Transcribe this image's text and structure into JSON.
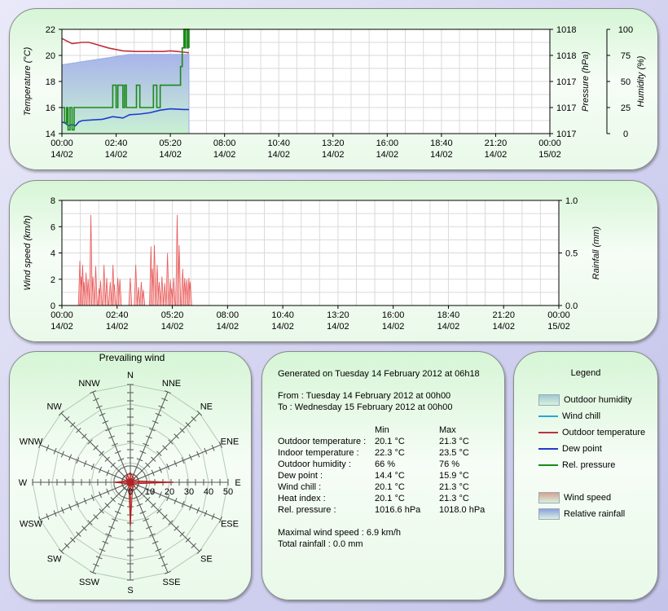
{
  "chart_data": [
    {
      "type": "line",
      "x_ticks": [
        [
          "00:00",
          "14/02"
        ],
        [
          "02:40",
          "14/02"
        ],
        [
          "05:20",
          "14/02"
        ],
        [
          "08:00",
          "14/02"
        ],
        [
          "10:40",
          "14/02"
        ],
        [
          "13:20",
          "14/02"
        ],
        [
          "16:00",
          "14/02"
        ],
        [
          "18:40",
          "14/02"
        ],
        [
          "21:20",
          "14/02"
        ],
        [
          "00:00",
          "15/02"
        ]
      ],
      "x_range_minutes": [
        0,
        1440
      ],
      "y_left": {
        "label": "Temperature (°C)",
        "range": [
          14,
          22
        ],
        "ticks": [
          "22",
          "20",
          "18",
          "16",
          "14"
        ]
      },
      "y_right1": {
        "label": "Pressure (hPa)",
        "range": [
          1016.6,
          1018.0
        ],
        "ticks": [
          "1018",
          "1018",
          "1017",
          "1017",
          "1017"
        ]
      },
      "y_right2": {
        "label": "Humidity (%)",
        "range": [
          0,
          100
        ],
        "ticks": [
          "100",
          "75",
          "50",
          "25",
          "0"
        ]
      },
      "series": [
        {
          "name": "Outdoor humidity",
          "color": "#9aaee6",
          "kind": "area",
          "axis": "humidity",
          "points": [
            [
              0,
              66
            ],
            [
              20,
              67
            ],
            [
              40,
              68
            ],
            [
              60,
              69
            ],
            [
              80,
              70
            ],
            [
              100,
              71
            ],
            [
              120,
              72
            ],
            [
              140,
              73
            ],
            [
              160,
              74
            ],
            [
              180,
              75
            ],
            [
              200,
              76
            ],
            [
              225,
              76
            ],
            [
              375,
              76
            ]
          ]
        },
        {
          "name": "Outdoor temperature",
          "color": "#c03040",
          "kind": "line",
          "axis": "temperature",
          "points": [
            [
              0,
              21.3
            ],
            [
              15,
              21.1
            ],
            [
              30,
              20.9
            ],
            [
              60,
              21.0
            ],
            [
              80,
              21.0
            ],
            [
              100,
              20.85
            ],
            [
              120,
              20.7
            ],
            [
              140,
              20.55
            ],
            [
              160,
              20.45
            ],
            [
              180,
              20.35
            ],
            [
              220,
              20.3
            ],
            [
              260,
              20.3
            ],
            [
              300,
              20.3
            ],
            [
              320,
              20.35
            ],
            [
              340,
              20.3
            ],
            [
              360,
              20.25
            ],
            [
              375,
              20.2
            ]
          ]
        },
        {
          "name": "Dew point",
          "color": "#1e3ccc",
          "kind": "line",
          "axis": "temperature",
          "points": [
            [
              0,
              14.9
            ],
            [
              10,
              14.8
            ],
            [
              20,
              14.6
            ],
            [
              30,
              14.7
            ],
            [
              40,
              14.6
            ],
            [
              50,
              14.9
            ],
            [
              60,
              15.0
            ],
            [
              90,
              15.05
            ],
            [
              120,
              15.1
            ],
            [
              150,
              15.3
            ],
            [
              180,
              15.2
            ],
            [
              200,
              15.45
            ],
            [
              230,
              15.5
            ],
            [
              260,
              15.6
            ],
            [
              290,
              15.8
            ],
            [
              320,
              15.9
            ],
            [
              360,
              15.85
            ],
            [
              375,
              15.85
            ]
          ]
        },
        {
          "name": "Rel. pressure",
          "color": "#1b8a1b",
          "kind": "step",
          "axis": "pressure",
          "points": [
            [
              0,
              1016.95
            ],
            [
              8,
              1016.75
            ],
            [
              14,
              1016.95
            ],
            [
              18,
              1016.65
            ],
            [
              24,
              1016.95
            ],
            [
              30,
              1016.65
            ],
            [
              36,
              1016.95
            ],
            [
              60,
              1016.95
            ],
            [
              100,
              1016.95
            ],
            [
              140,
              1016.95
            ],
            [
              150,
              1017.25
            ],
            [
              160,
              1016.95
            ],
            [
              165,
              1017.25
            ],
            [
              180,
              1016.95
            ],
            [
              185,
              1017.25
            ],
            [
              190,
              1016.95
            ],
            [
              200,
              1016.95
            ],
            [
              220,
              1017.25
            ],
            [
              230,
              1016.95
            ],
            [
              260,
              1016.95
            ],
            [
              270,
              1017.25
            ],
            [
              280,
              1016.95
            ],
            [
              290,
              1017.25
            ],
            [
              330,
              1017.25
            ],
            [
              350,
              1017.5
            ],
            [
              355,
              1017.75
            ],
            [
              360,
              1018.0
            ],
            [
              362,
              1017.75
            ],
            [
              365,
              1018.0
            ],
            [
              370,
              1017.75
            ],
            [
              372,
              1018.0
            ],
            [
              375,
              1017.75
            ]
          ]
        }
      ]
    },
    {
      "type": "bar",
      "x_ticks": [
        [
          "00:00",
          "14/02"
        ],
        [
          "02:40",
          "14/02"
        ],
        [
          "05:20",
          "14/02"
        ],
        [
          "08:00",
          "14/02"
        ],
        [
          "10:40",
          "14/02"
        ],
        [
          "13:20",
          "14/02"
        ],
        [
          "16:00",
          "14/02"
        ],
        [
          "18:40",
          "14/02"
        ],
        [
          "21:20",
          "14/02"
        ],
        [
          "00:00",
          "15/02"
        ]
      ],
      "x_range_minutes": [
        0,
        1440
      ],
      "y_left": {
        "label": "Wind speed (km/h)",
        "range": [
          0,
          8
        ],
        "ticks": [
          "8",
          "6",
          "4",
          "2",
          "0"
        ]
      },
      "y_right": {
        "label": "Rainfall (mm)",
        "range": [
          0,
          1.0
        ],
        "ticks": [
          "1.0",
          "0.5",
          "0.0"
        ]
      },
      "series": [
        {
          "name": "Wind speed",
          "color": "#e85a5a",
          "kind": "spikes",
          "points": [
            [
              52,
              3.4
            ],
            [
              56,
              2.2
            ],
            [
              60,
              3.1
            ],
            [
              64,
              1.8
            ],
            [
              70,
              2.5
            ],
            [
              76,
              2.0
            ],
            [
              84,
              6.9
            ],
            [
              90,
              2.2
            ],
            [
              98,
              3.0
            ],
            [
              108,
              1.3
            ],
            [
              112,
              1.9
            ],
            [
              122,
              3.1
            ],
            [
              130,
              2.1
            ],
            [
              140,
              1.8
            ],
            [
              148,
              3.1
            ],
            [
              152,
              1.6
            ],
            [
              162,
              2.1
            ],
            [
              168,
              2.0
            ],
            [
              198,
              2.1
            ],
            [
              214,
              3.1
            ],
            [
              222,
              1.4
            ],
            [
              230,
              1.8
            ],
            [
              236,
              1.2
            ],
            [
              258,
              4.5
            ],
            [
              262,
              2.8
            ],
            [
              268,
              4.6
            ],
            [
              276,
              3.1
            ],
            [
              282,
              1.8
            ],
            [
              290,
              2.2
            ],
            [
              298,
              1.7
            ],
            [
              306,
              4.0
            ],
            [
              314,
              2.0
            ],
            [
              318,
              1.3
            ],
            [
              324,
              2.1
            ],
            [
              334,
              6.9
            ],
            [
              340,
              4.6
            ],
            [
              350,
              2.8
            ],
            [
              356,
              2.1
            ],
            [
              362,
              2.0
            ],
            [
              368,
              2.1
            ],
            [
              372,
              1.8
            ]
          ]
        }
      ]
    },
    {
      "type": "radar",
      "title": "Prevailing wind",
      "directions": [
        "N",
        "NNE",
        "NE",
        "ENE",
        "E",
        "ESE",
        "SE",
        "SSE",
        "S",
        "SSW",
        "SW",
        "WSW",
        "W",
        "WNW",
        "NW",
        "NNW"
      ],
      "radial_ticks": [
        "0",
        "10",
        "20",
        "30",
        "40",
        "50"
      ],
      "radial_range": [
        0,
        50
      ],
      "values": [
        5,
        3,
        3,
        2,
        22,
        2,
        3,
        3,
        22,
        2,
        2,
        2,
        8,
        2,
        3,
        4
      ]
    }
  ],
  "stats": {
    "generated": "Generated on Tuesday 14 February 2012 at 06h18",
    "from": "From : Tuesday 14 February 2012 at 00h00",
    "to": "To : Wednesday 15 February 2012 at 00h00",
    "col_min": "Min",
    "col_max": "Max",
    "rows": [
      {
        "label": "Outdoor temperature :",
        "min": "20.1 °C",
        "max": "21.3 °C"
      },
      {
        "label": "Indoor temperature :",
        "min": "22.3 °C",
        "max": "23.5 °C"
      },
      {
        "label": "Outdoor humidity :",
        "min": "66 %",
        "max": "76 %"
      },
      {
        "label": "Dew point :",
        "min": "14.4 °C",
        "max": "15.9 °C"
      },
      {
        "label": "Wind chill :",
        "min": "20.1 °C",
        "max": "21.3 °C"
      },
      {
        "label": "Heat index :",
        "min": "20.1 °C",
        "max": "21.3 °C"
      },
      {
        "label": "Rel. pressure :",
        "min": "1016.6 hPa",
        "max": "1018.0 hPa"
      }
    ],
    "max_wind": "Maximal wind speed : 6.9 km/h",
    "total_rain": "Total rainfall : 0.0 mm"
  },
  "legend": {
    "title": "Legend",
    "items": [
      {
        "label": "Outdoor humidity",
        "kind": "area",
        "color": "#9fc8cf"
      },
      {
        "label": "Wind chill",
        "kind": "line",
        "color": "#26a6d8"
      },
      {
        "label": "Outdoor temperature",
        "kind": "line",
        "color": "#c03040"
      },
      {
        "label": "Dew point",
        "kind": "line",
        "color": "#1e3ccc"
      },
      {
        "label": "Rel. pressure",
        "kind": "line",
        "color": "#1b8a1b"
      },
      {
        "label": "Wind speed",
        "kind": "area",
        "color": "#d9a191"
      },
      {
        "label": "Relative rainfall",
        "kind": "area",
        "color": "#8f9fe2"
      }
    ]
  }
}
